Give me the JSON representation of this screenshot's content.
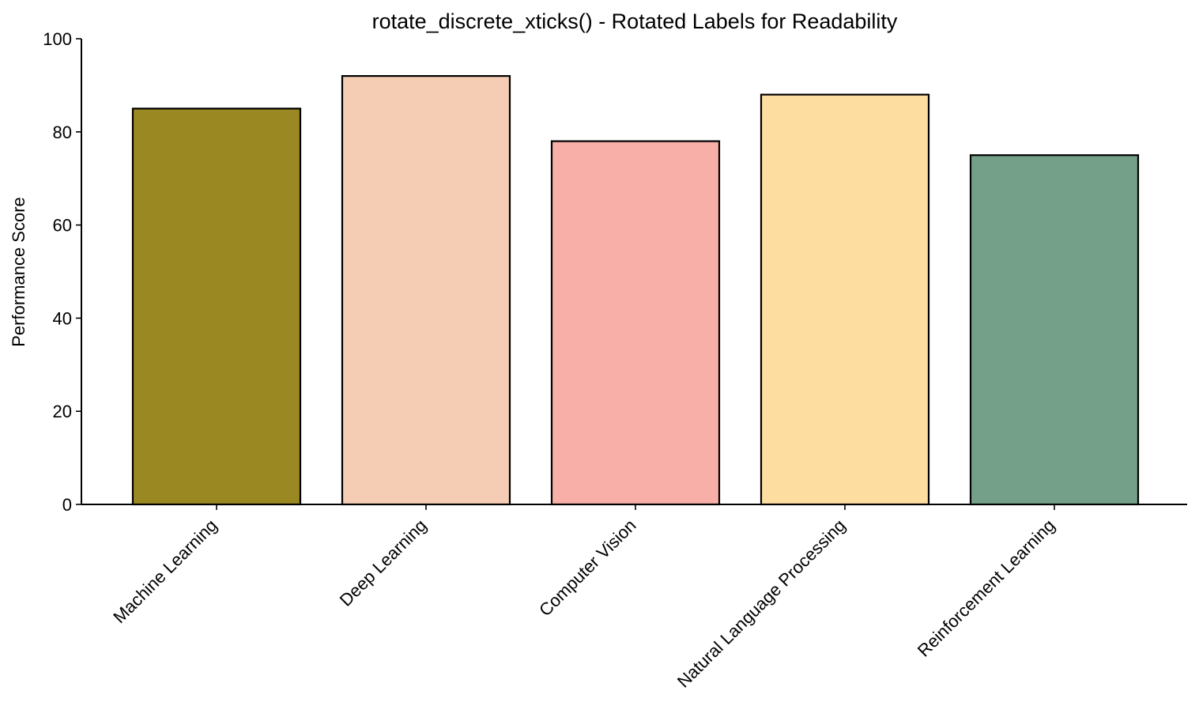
{
  "chart_data": {
    "type": "bar",
    "title": "rotate_discrete_xticks() - Rotated Labels for Readability",
    "xlabel": "",
    "ylabel": "Performance Score",
    "categories": [
      "Machine Learning",
      "Deep Learning",
      "Computer Vision",
      "Natural Language Processing",
      "Reinforcement Learning"
    ],
    "values": [
      85,
      92,
      78,
      88,
      75
    ],
    "colors": [
      "#9a8822",
      "#f5cdb4",
      "#f8afa8",
      "#fddda0",
      "#74a089"
    ],
    "ylim": [
      0,
      100
    ],
    "yticks": [
      0,
      20,
      40,
      60,
      80,
      100
    ],
    "grid": false,
    "legend": null
  }
}
